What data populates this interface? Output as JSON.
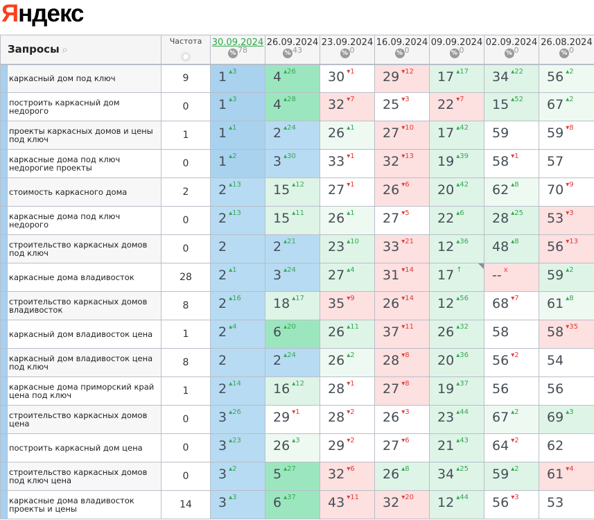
{
  "logo": {
    "text": "Яндекс",
    "first": "Я",
    "rest": "ндекс"
  },
  "header": {
    "queries_label": "Запросы",
    "search_icon": "search-icon",
    "frequency_label": "Частота",
    "globe_icon": "globe-icon",
    "percent_icon": "%",
    "dates": [
      {
        "date": "30.09.2024",
        "pct": "78",
        "current": true
      },
      {
        "date": "26.09.2024",
        "pct": "43"
      },
      {
        "date": "23.09.2024",
        "pct": "0"
      },
      {
        "date": "16.09.2024",
        "pct": "0"
      },
      {
        "date": "09.09.2024",
        "pct": "0"
      },
      {
        "date": "02.09.2024",
        "pct": "0"
      },
      {
        "date": "26.08.2024",
        "pct": "0"
      }
    ]
  },
  "colors": {
    "blue": "#a9d2ef",
    "green_strong": "#9ce6bf",
    "green_light": "#def4e7",
    "green_pale": "#eef9f2",
    "pink": "#fde0e0",
    "up": "#35a852",
    "down": "#e03a3a",
    "accent_date": "#2aa845"
  },
  "rows": [
    {
      "query": "каркасный дом под ключ",
      "freq": "9",
      "cells": [
        [
          "1",
          "▴3",
          "B1"
        ],
        [
          "4",
          "▴26",
          "G"
        ],
        [
          "30",
          "▾1",
          "W"
        ],
        [
          "29",
          "▾12",
          "P"
        ],
        [
          "17",
          "▴17",
          "g"
        ],
        [
          "34",
          "▴22",
          "g"
        ],
        [
          "56",
          "▴2",
          "l"
        ]
      ]
    },
    {
      "query": "построить каркасный дом недорого",
      "freq": "0",
      "cells": [
        [
          "1",
          "▴3",
          "B1"
        ],
        [
          "4",
          "▴28",
          "G"
        ],
        [
          "32",
          "▾7",
          "P"
        ],
        [
          "25",
          "▾3",
          "W"
        ],
        [
          "22",
          "▾7",
          "P"
        ],
        [
          "15",
          "▴52",
          "g"
        ],
        [
          "67",
          "▴2",
          "l"
        ]
      ]
    },
    {
      "query": "проекты каркасных домов и цены под ключ",
      "freq": "1",
      "cells": [
        [
          "1",
          "▴1",
          "B1"
        ],
        [
          "2",
          "▴24",
          "B"
        ],
        [
          "26",
          "▴1",
          "l"
        ],
        [
          "27",
          "▾10",
          "P"
        ],
        [
          "17",
          "▴42",
          "g"
        ],
        [
          "59",
          "",
          "W"
        ],
        [
          "59",
          "▾8",
          "W"
        ]
      ]
    },
    {
      "query": "каркасные дома под ключ недорогие проекты",
      "freq": "0",
      "cells": [
        [
          "1",
          "▴2",
          "B1"
        ],
        [
          "3",
          "▴30",
          "B"
        ],
        [
          "33",
          "▾1",
          "W"
        ],
        [
          "32",
          "▾13",
          "P"
        ],
        [
          "19",
          "▴39",
          "g"
        ],
        [
          "58",
          "▾1",
          "W"
        ],
        [
          "57",
          "",
          "W"
        ]
      ]
    },
    {
      "query": "стоимость каркасного дома",
      "freq": "2",
      "cells": [
        [
          "2",
          "▴13",
          "B"
        ],
        [
          "15",
          "▴12",
          "g"
        ],
        [
          "27",
          "▾1",
          "W"
        ],
        [
          "26",
          "▾6",
          "P"
        ],
        [
          "20",
          "▴42",
          "g"
        ],
        [
          "62",
          "▴8",
          "l"
        ],
        [
          "70",
          "▾9",
          "W"
        ]
      ]
    },
    {
      "query": "каркасные дома под ключ недорого",
      "freq": "0",
      "cells": [
        [
          "2",
          "▴13",
          "B"
        ],
        [
          "15",
          "▴11",
          "g"
        ],
        [
          "26",
          "▴1",
          "l"
        ],
        [
          "27",
          "▾5",
          "W"
        ],
        [
          "22",
          "▴6",
          "g"
        ],
        [
          "28",
          "▴25",
          "g"
        ],
        [
          "53",
          "▾3",
          "P"
        ]
      ]
    },
    {
      "query": "строительство каркасных домов под ключ",
      "freq": "0",
      "cells": [
        [
          "2",
          "",
          "B"
        ],
        [
          "2",
          "▴21",
          "B"
        ],
        [
          "23",
          "▴10",
          "g"
        ],
        [
          "33",
          "▾21",
          "P"
        ],
        [
          "12",
          "▴36",
          "g"
        ],
        [
          "48",
          "▴8",
          "g"
        ],
        [
          "56",
          "▾13",
          "P"
        ]
      ]
    },
    {
      "query": "каркасные дома владивосток",
      "freq": "28",
      "cells": [
        [
          "2",
          "▴1",
          "B"
        ],
        [
          "3",
          "▴24",
          "B"
        ],
        [
          "27",
          "▴4",
          "g"
        ],
        [
          "31",
          "▾14",
          "P"
        ],
        [
          "17",
          "↑",
          "g",
          "corner"
        ],
        [
          "--",
          "x",
          "P"
        ],
        [
          "59",
          "▴2",
          "g"
        ]
      ]
    },
    {
      "query": "строительство каркасных домов владивосток",
      "freq": "8",
      "cells": [
        [
          "2",
          "▴16",
          "B"
        ],
        [
          "18",
          "▴17",
          "g"
        ],
        [
          "35",
          "▾9",
          "P"
        ],
        [
          "26",
          "▾14",
          "P"
        ],
        [
          "12",
          "▴56",
          "g"
        ],
        [
          "68",
          "▾7",
          "W"
        ],
        [
          "61",
          "▴8",
          "l"
        ]
      ]
    },
    {
      "query": "каркасный дом владивосток цена",
      "freq": "1",
      "cells": [
        [
          "2",
          "▴4",
          "B"
        ],
        [
          "6",
          "▴20",
          "G"
        ],
        [
          "26",
          "▴11",
          "g"
        ],
        [
          "37",
          "▾11",
          "P"
        ],
        [
          "26",
          "▴32",
          "g"
        ],
        [
          "58",
          "",
          "W"
        ],
        [
          "58",
          "▾35",
          "P"
        ]
      ]
    },
    {
      "query": "каркасный дом владивосток цена под ключ",
      "freq": "8",
      "cells": [
        [
          "2",
          "",
          "B"
        ],
        [
          "2",
          "▴24",
          "B"
        ],
        [
          "26",
          "▴2",
          "l"
        ],
        [
          "28",
          "▾8",
          "P"
        ],
        [
          "20",
          "▴36",
          "g"
        ],
        [
          "56",
          "▾2",
          "W"
        ],
        [
          "54",
          "",
          "W"
        ]
      ]
    },
    {
      "query": "каркасные дома приморский край цена под ключ",
      "freq": "1",
      "cells": [
        [
          "2",
          "▴14",
          "B"
        ],
        [
          "16",
          "▴12",
          "g"
        ],
        [
          "28",
          "▾1",
          "W"
        ],
        [
          "27",
          "▾8",
          "P"
        ],
        [
          "19",
          "▴37",
          "g"
        ],
        [
          "56",
          "",
          "W"
        ],
        [
          "56",
          "",
          "W"
        ]
      ]
    },
    {
      "query": "строительство каркасных домов цена",
      "freq": "0",
      "cells": [
        [
          "3",
          "▴26",
          "B"
        ],
        [
          "29",
          "▾1",
          "W"
        ],
        [
          "28",
          "▾2",
          "W"
        ],
        [
          "26",
          "▾3",
          "W"
        ],
        [
          "23",
          "▴44",
          "g"
        ],
        [
          "67",
          "▴2",
          "l"
        ],
        [
          "69",
          "▴3",
          "g"
        ]
      ]
    },
    {
      "query": "построить каркасный дом цена",
      "freq": "0",
      "cells": [
        [
          "3",
          "▴23",
          "B"
        ],
        [
          "26",
          "▴3",
          "l"
        ],
        [
          "29",
          "▾2",
          "W"
        ],
        [
          "27",
          "▾6",
          "W"
        ],
        [
          "21",
          "▴43",
          "g"
        ],
        [
          "64",
          "▾2",
          "W"
        ],
        [
          "62",
          "",
          "W"
        ]
      ]
    },
    {
      "query": "строительство каркасных домов под ключ цена",
      "freq": "0",
      "cells": [
        [
          "3",
          "▴2",
          "B"
        ],
        [
          "5",
          "▴27",
          "G"
        ],
        [
          "32",
          "▾6",
          "P"
        ],
        [
          "26",
          "▴8",
          "g"
        ],
        [
          "34",
          "▴25",
          "g"
        ],
        [
          "59",
          "▴2",
          "g"
        ],
        [
          "61",
          "▾4",
          "P"
        ]
      ]
    },
    {
      "query": "каркасные дома владивосток проекты и цены",
      "freq": "14",
      "cells": [
        [
          "3",
          "▴3",
          "B"
        ],
        [
          "6",
          "▴37",
          "G"
        ],
        [
          "43",
          "▾11",
          "P"
        ],
        [
          "32",
          "▾20",
          "P"
        ],
        [
          "12",
          "▴44",
          "g"
        ],
        [
          "56",
          "▾3",
          "W"
        ],
        [
          "53",
          "",
          "W"
        ]
      ]
    }
  ]
}
